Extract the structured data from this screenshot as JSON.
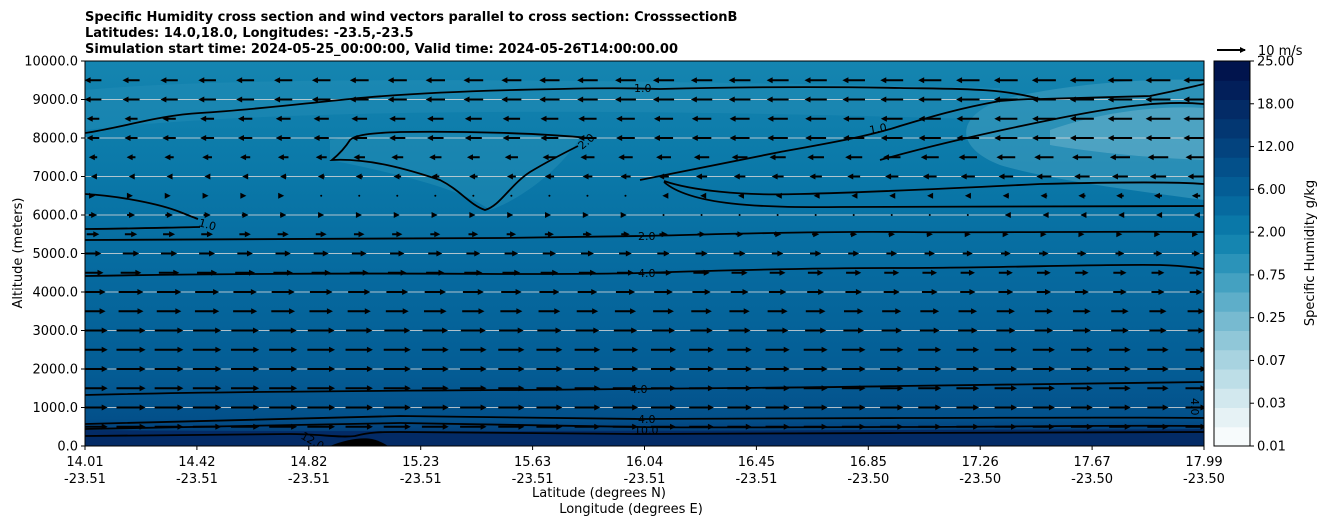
{
  "chart_data": {
    "type": "contour-cross-section",
    "title": [
      "Specific Humidity cross section and wind vectors parallel to cross section: CrosssectionB",
      "Latitudes: 14.0,18.0, Longitudes: -23.5,-23.5",
      "Simulation start time: 2024-05-25_00:00:00, Valid time: 2024-05-26T14:00:00.00"
    ],
    "ylabel": "Altitude (meters)",
    "xlabel_lat": "Latitude (degrees N)",
    "xlabel_lon": "Longitude (degrees E)",
    "ylim": [
      0,
      10000
    ],
    "y_ticks": [
      "0.0",
      "1000.0",
      "2000.0",
      "3000.0",
      "4000.0",
      "5000.0",
      "6000.0",
      "7000.0",
      "8000.0",
      "9000.0",
      "10000.0"
    ],
    "x_ticks": [
      {
        "lat": "14.01",
        "lon": "-23.51"
      },
      {
        "lat": "14.42",
        "lon": "-23.51"
      },
      {
        "lat": "14.82",
        "lon": "-23.51"
      },
      {
        "lat": "15.23",
        "lon": "-23.51"
      },
      {
        "lat": "15.63",
        "lon": "-23.51"
      },
      {
        "lat": "16.04",
        "lon": "-23.51"
      },
      {
        "lat": "16.45",
        "lon": "-23.51"
      },
      {
        "lat": "16.85",
        "lon": "-23.50"
      },
      {
        "lat": "17.26",
        "lon": "-23.50"
      },
      {
        "lat": "17.67",
        "lon": "-23.50"
      },
      {
        "lat": "17.99",
        "lon": "-23.50"
      }
    ],
    "colorbar": {
      "label": "Specific Humidity g/kg",
      "tick_labels": [
        "0.01",
        "0.03",
        "0.07",
        "0.25",
        "0.75",
        "2.00",
        "6.00",
        "12.00",
        "18.00",
        "25.00"
      ],
      "colors": [
        "#f7fbfc",
        "#e6f2f5",
        "#d2e8ee",
        "#bddee7",
        "#a8d3e0",
        "#90c7d8",
        "#77bad0",
        "#5eaec9",
        "#44a1c1",
        "#2b93b9",
        "#1585b0",
        "#0a78a8",
        "#066a9f",
        "#045d95",
        "#03508a",
        "#03437e",
        "#033772",
        "#032b66",
        "#021f5a",
        "#01144d"
      ]
    },
    "quiver_key": "10 m/s",
    "contour_labels": [
      {
        "text": "1.0"
      },
      {
        "text": "1.0"
      },
      {
        "text": "2.0"
      },
      {
        "text": "1.0"
      },
      {
        "text": "2.0"
      },
      {
        "text": "4.0"
      },
      {
        "text": "4.0"
      },
      {
        "text": "4.0"
      },
      {
        "text": "10.0"
      },
      {
        "text": "12.0"
      },
      {
        "text": "4.0"
      }
    ],
    "wind_profile": {
      "altitudes_m": [
        500,
        1000,
        1500,
        2000,
        2500,
        3000,
        3500,
        4000,
        4500,
        5000,
        5500,
        6000,
        6500,
        7000,
        7500,
        8000,
        8500,
        9000,
        9500
      ],
      "u_west": [
        7,
        7,
        7,
        7,
        7,
        7,
        6,
        6,
        5,
        4,
        3,
        2,
        1,
        -1,
        -2,
        -3,
        -3,
        -4,
        -4
      ],
      "u_east": [
        5,
        5,
        5,
        5,
        5,
        4,
        4,
        3,
        3,
        2,
        1,
        -1,
        -2,
        -4,
        -5,
        -6,
        -6,
        -6,
        -6
      ]
    }
  }
}
